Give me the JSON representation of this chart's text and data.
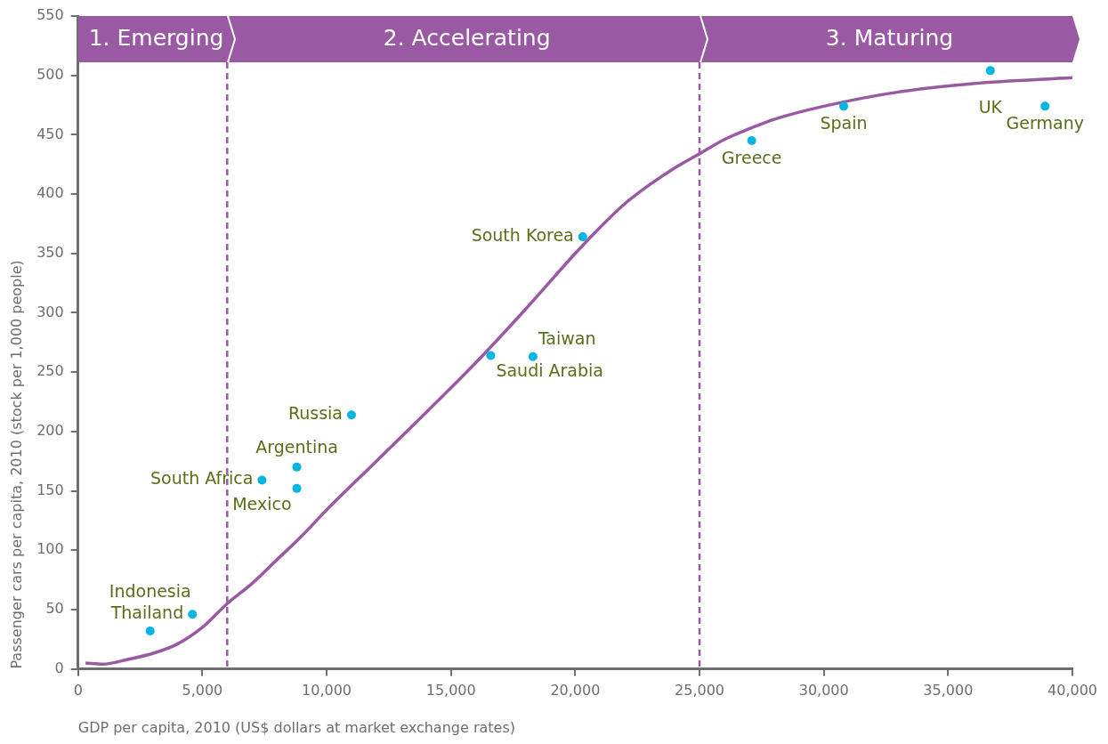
{
  "chart_data": {
    "type": "scatter",
    "xlabel": "GDP per capita, 2010 (US$ dollars at market exchange rates)",
    "ylabel": "Passenger cars per capita, 2010 (stock per 1,000 people)",
    "xlim": [
      0,
      40000
    ],
    "xticks": [
      {
        "value": 0,
        "label": "0"
      },
      {
        "value": 5000,
        "label": "5,000"
      },
      {
        "value": 10000,
        "label": "10,000"
      },
      {
        "value": 15000,
        "label": "15,000"
      },
      {
        "value": 20000,
        "label": "20,000"
      },
      {
        "value": 25000,
        "label": "25,000"
      },
      {
        "value": 30000,
        "label": "30,000"
      },
      {
        "value": 35000,
        "label": "35,000"
      },
      {
        "value": 40000,
        "label": "40,000"
      }
    ],
    "ylim": [
      0,
      550
    ],
    "yticks": [
      0,
      50,
      100,
      150,
      200,
      250,
      300,
      350,
      400,
      450,
      500,
      550
    ],
    "grid": false,
    "legend": false,
    "series": [
      {
        "type": "scatter",
        "color": "#00b5e2",
        "marker": "circle",
        "x": [
          2900,
          4600,
          7400,
          8800,
          8800,
          11000,
          16600,
          18300,
          20300,
          27100,
          30800,
          36700,
          38900
        ],
        "values": [
          32,
          46,
          159,
          170,
          152,
          214,
          264,
          263,
          364,
          445,
          474,
          504,
          474
        ]
      },
      {
        "type": "line",
        "color": "#9a5aa3",
        "marker": "none",
        "line_style": "solid",
        "x": [
          300,
          1000,
          2000,
          3000,
          4000,
          5000,
          6000,
          7000,
          8000,
          9000,
          10000,
          12000,
          14000,
          16000,
          18000,
          20000,
          21000,
          22000,
          23000,
          24000,
          25000,
          26000,
          27000,
          28000,
          30000,
          33000,
          36000,
          40000
        ],
        "values": [
          5,
          4,
          8,
          13,
          21,
          35,
          55,
          72,
          92,
          112,
          134,
          175,
          216,
          258,
          303,
          350,
          372,
          392,
          408,
          422,
          434,
          446,
          455,
          463,
          474,
          486,
          493,
          498
        ]
      }
    ],
    "ref_lines": [
      {
        "axis": "x",
        "value": 6000,
        "color": "#9a5aa3",
        "line_style": "dashed"
      },
      {
        "axis": "x",
        "value": 25000,
        "color": "#9a5aa3",
        "line_style": "dashed"
      }
    ],
    "bands": [
      {
        "axis": "x",
        "from": 0,
        "to": 6000,
        "label": "1. Emerging",
        "color": "#9a5aa3"
      },
      {
        "axis": "x",
        "from": 6000,
        "to": 25000,
        "label": "2. Accelerating",
        "color": "#9a5aa3"
      },
      {
        "axis": "x",
        "from": 25000,
        "to": 40000,
        "label": "3. Maturing",
        "color": "#9a5aa3"
      }
    ],
    "annotations": [
      {
        "text": "Indonesia",
        "x": 2900,
        "y": 32
      },
      {
        "text": "Thailand",
        "x": 4600,
        "y": 46
      },
      {
        "text": "South Africa",
        "x": 7400,
        "y": 159
      },
      {
        "text": "Argentina",
        "x": 8800,
        "y": 170
      },
      {
        "text": "Mexico",
        "x": 8800,
        "y": 152
      },
      {
        "text": "Russia",
        "x": 11000,
        "y": 214
      },
      {
        "text": "Saudi Arabia",
        "x": 16600,
        "y": 264
      },
      {
        "text": "Taiwan",
        "x": 18300,
        "y": 263
      },
      {
        "text": "South Korea",
        "x": 20300,
        "y": 364
      },
      {
        "text": "Greece",
        "x": 27100,
        "y": 445
      },
      {
        "text": "Spain",
        "x": 30800,
        "y": 474
      },
      {
        "text": "UK",
        "x": 36700,
        "y": 504
      },
      {
        "text": "Germany",
        "x": 38900,
        "y": 474
      }
    ]
  }
}
